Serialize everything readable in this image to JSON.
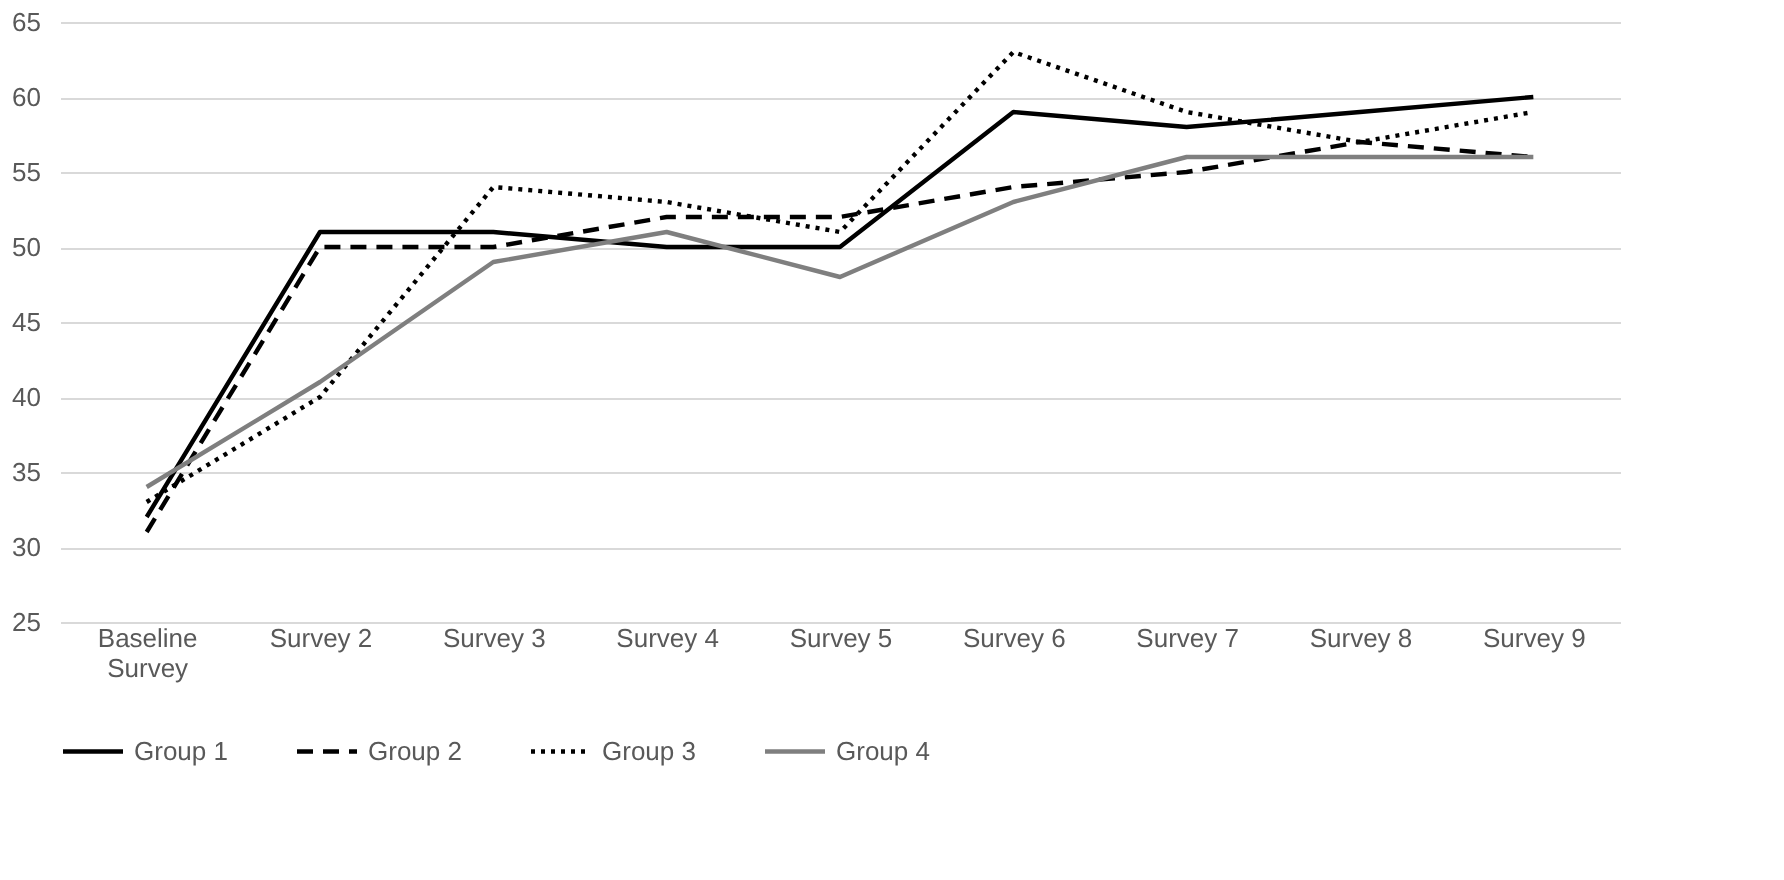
{
  "chart_data": {
    "type": "line",
    "categories": [
      "Baseline Survey",
      "Survey 2",
      "Survey 3",
      "Survey 4",
      "Survey 5",
      "Survey 6",
      "Survey 7",
      "Survey 8",
      "Survey 9"
    ],
    "series": [
      {
        "name": "Group 1",
        "color": "#000000",
        "line_style": "solid",
        "values": [
          32,
          51,
          51,
          50,
          50,
          59,
          58,
          59,
          60
        ]
      },
      {
        "name": "Group 2",
        "color": "#000000",
        "line_style": "dashed",
        "values": [
          31,
          50,
          50,
          52,
          52,
          54,
          55,
          57,
          56
        ]
      },
      {
        "name": "Group 3",
        "color": "#000000",
        "line_style": "dotted",
        "values": [
          33,
          40,
          54,
          53,
          51,
          63,
          59,
          57,
          59
        ]
      },
      {
        "name": "Group 4",
        "color": "#7f7f7f",
        "line_style": "solid",
        "values": [
          34,
          41,
          49,
          51,
          48,
          53,
          56,
          56,
          56
        ]
      }
    ],
    "ylim": [
      25,
      65
    ],
    "yticks": [
      25,
      30,
      35,
      40,
      45,
      50,
      55,
      60,
      65
    ],
    "grid": "y",
    "legend": "bottom",
    "marker": "none"
  }
}
